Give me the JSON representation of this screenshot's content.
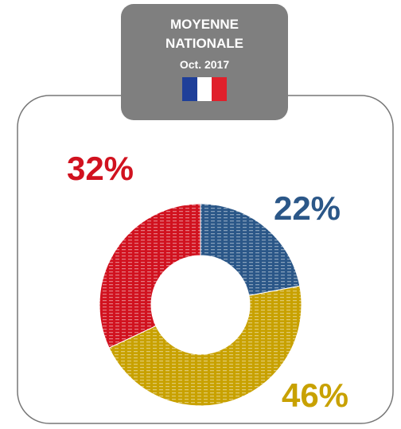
{
  "chart_data": {
    "type": "donut",
    "title": "MOYENNE NATIONALE",
    "subtitle": "Oct. 2017",
    "values": [
      22,
      46,
      32
    ],
    "value_labels": [
      "22%",
      "46%",
      "32%"
    ],
    "colors": [
      "#2b5788",
      "#c8a100",
      "#d1121f"
    ]
  }
}
